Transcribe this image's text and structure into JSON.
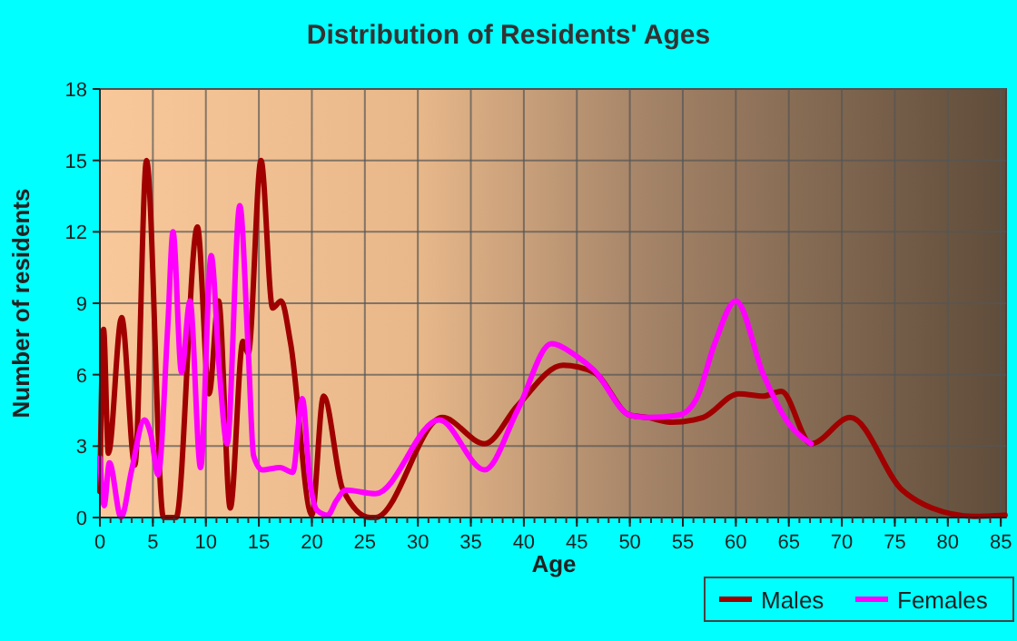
{
  "chart_data": {
    "type": "line",
    "title": "Distribution of Residents' Ages",
    "xlabel": "Age",
    "ylabel": "Number of residents",
    "xlim": [
      0,
      85.5
    ],
    "ylim": [
      0,
      18
    ],
    "xticks": [
      0,
      5,
      10,
      15,
      20,
      25,
      30,
      35,
      40,
      45,
      50,
      55,
      60,
      65,
      70,
      75,
      80,
      85
    ],
    "yticks": [
      0,
      3,
      6,
      9,
      12,
      15,
      18
    ],
    "grid": true,
    "legend": "bottom right",
    "marker": "none",
    "series": [
      {
        "name": "Males",
        "color": "#a00000",
        "x": [
          0,
          0.35,
          0.8,
          2.05,
          3.3,
          4.4,
          6.0,
          7.2,
          9.2,
          10.3,
          11.2,
          12.3,
          13.5,
          14.0,
          15.2,
          16.3,
          17.1,
          18.0,
          20.0,
          21.1,
          22.9,
          25.5,
          26,
          32.3,
          36.3,
          39.4,
          43.7,
          46.6,
          50,
          51.7,
          54,
          56.9,
          60.3,
          62.6,
          64.3,
          67.1,
          70.8,
          75.7,
          78.5,
          82.5,
          85.4
        ],
        "values": [
          1.1,
          7.9,
          2.7,
          8.4,
          2.2,
          15,
          0,
          0,
          12.2,
          5.2,
          9.1,
          0.4,
          7.4,
          6.9,
          15,
          8.8,
          9.1,
          7.3,
          0.1,
          5.1,
          1.2,
          0,
          0,
          4.2,
          3.1,
          4.7,
          6.4,
          6.1,
          4.3,
          4.2,
          4,
          4.2,
          5.2,
          5.1,
          5.3,
          3.1,
          4.2,
          1.15,
          0.4,
          0.05,
          0.1
        ]
      },
      {
        "name": "Females",
        "color": "#ff00ff",
        "x": [
          0,
          0.4,
          0.9,
          2.0,
          3.0,
          4.2,
          4.8,
          5.5,
          6.4,
          6.9,
          7.7,
          8.5,
          9.5,
          10.5,
          11.3,
          12.0,
          13.2,
          14.0,
          14.5,
          15.3,
          17.0,
          18.2,
          19.1,
          19.8,
          20.5,
          21.5,
          22.3,
          23.2,
          26,
          32,
          36.3,
          39.4,
          42.6,
          44.9,
          46.6,
          50,
          51.7,
          54.6,
          56.3,
          58,
          60,
          62.6,
          64.9,
          67.1
        ],
        "values": [
          2.5,
          0.5,
          2.3,
          0,
          2,
          4.1,
          3.5,
          1.8,
          8,
          12,
          6.1,
          9.1,
          2.1,
          11,
          6,
          3.1,
          13.1,
          7,
          2.6,
          2,
          2.1,
          1.9,
          5,
          1.6,
          0.3,
          0.1,
          0.7,
          1.15,
          1,
          4.1,
          2,
          4.5,
          7.3,
          6.8,
          6.2,
          4.3,
          4.2,
          4.3,
          5,
          7.3,
          9.1,
          6,
          4,
          3.1
        ]
      }
    ]
  }
}
